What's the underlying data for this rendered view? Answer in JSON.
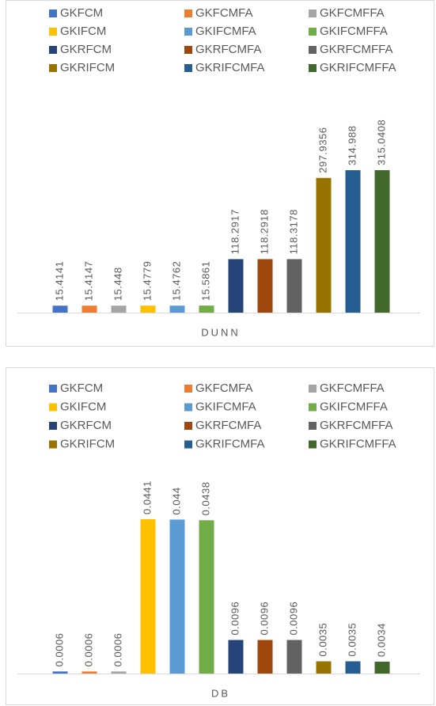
{
  "chart_data": [
    {
      "type": "bar",
      "categories": [
        "DUNN"
      ],
      "series": [
        {
          "name": "GKFCM",
          "color": "#4472c4",
          "values": [
            15.4141
          ]
        },
        {
          "name": "GKFCMFA",
          "color": "#ed7d31",
          "values": [
            15.4147
          ]
        },
        {
          "name": "GKFCMFFA",
          "color": "#a5a5a5",
          "values": [
            15.448
          ]
        },
        {
          "name": "GKIFCM",
          "color": "#ffc000",
          "values": [
            15.4779
          ]
        },
        {
          "name": "GKIFCMFA",
          "color": "#5b9bd5",
          "values": [
            15.4762
          ]
        },
        {
          "name": "GKIFCMFFA",
          "color": "#70ad47",
          "values": [
            15.5861
          ]
        },
        {
          "name": "GKRFCM",
          "color": "#264478",
          "values": [
            118.2917
          ]
        },
        {
          "name": "GKRFCMFA",
          "color": "#9e480e",
          "values": [
            118.2918
          ]
        },
        {
          "name": "GKRFCMFFA",
          "color": "#636363",
          "values": [
            118.3178
          ]
        },
        {
          "name": "GKRIFCM",
          "color": "#997300",
          "values": [
            297.9356
          ]
        },
        {
          "name": "GKRIFCMFA",
          "color": "#255e91",
          "values": [
            314.988
          ]
        },
        {
          "name": "GKRIFCMFFA",
          "color": "#43682b",
          "values": [
            315.0408
          ]
        }
      ],
      "legend": "top"
    },
    {
      "type": "bar",
      "categories": [
        "DB"
      ],
      "series": [
        {
          "name": "GKFCM",
          "color": "#4472c4",
          "values": [
            0.0006
          ]
        },
        {
          "name": "GKFCMFA",
          "color": "#ed7d31",
          "values": [
            0.0006
          ]
        },
        {
          "name": "GKFCMFFA",
          "color": "#a5a5a5",
          "values": [
            0.0006
          ]
        },
        {
          "name": "GKIFCM",
          "color": "#ffc000",
          "values": [
            0.0441
          ]
        },
        {
          "name": "GKIFCMFA",
          "color": "#5b9bd5",
          "values": [
            0.044
          ]
        },
        {
          "name": "GKIFCMFFA",
          "color": "#70ad47",
          "values": [
            0.0438
          ]
        },
        {
          "name": "GKRFCM",
          "color": "#264478",
          "values": [
            0.0096
          ]
        },
        {
          "name": "GKRFCMFA",
          "color": "#9e480e",
          "values": [
            0.0096
          ]
        },
        {
          "name": "GKRFCMFFA",
          "color": "#636363",
          "values": [
            0.0096
          ]
        },
        {
          "name": "GKRIFCM",
          "color": "#997300",
          "values": [
            0.0035
          ]
        },
        {
          "name": "GKRIFCMFA",
          "color": "#255e91",
          "values": [
            0.0035
          ]
        },
        {
          "name": "GKRIFCMFFA",
          "color": "#43682b",
          "values": [
            0.0034
          ]
        }
      ],
      "legend": "top"
    }
  ]
}
